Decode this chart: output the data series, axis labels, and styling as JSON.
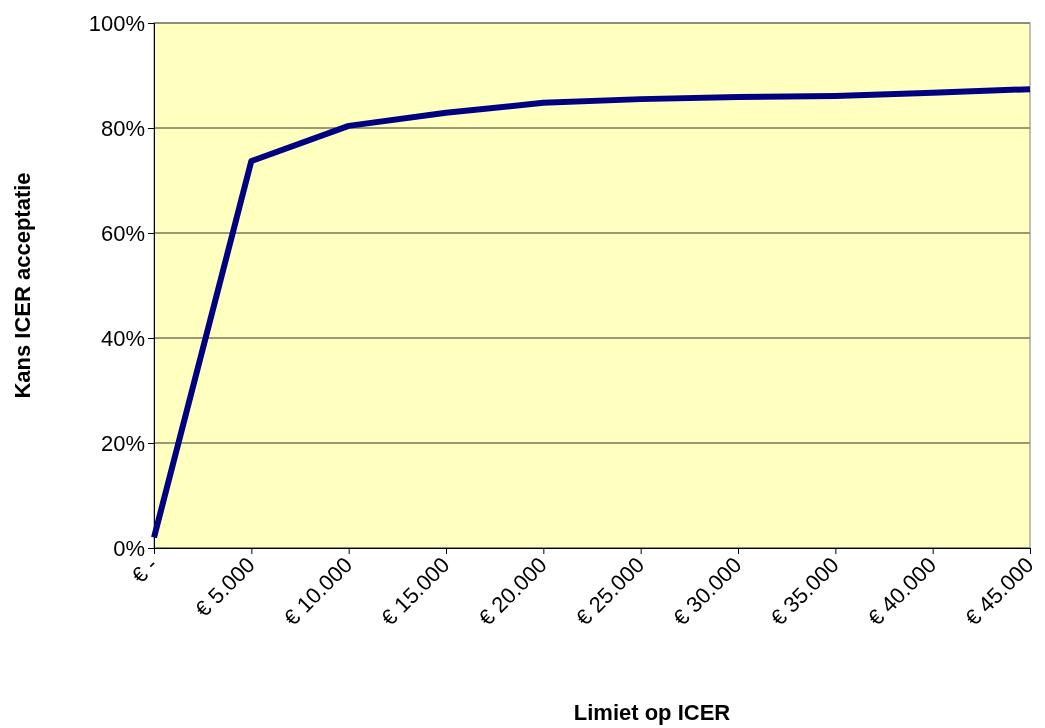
{
  "chart_data": {
    "type": "line",
    "xlabel": "Limiet op ICER",
    "ylabel": "Kans ICER acceptatie",
    "categories": [
      "€ -",
      "€ 5.000",
      "€ 10.000",
      "€ 15.000",
      "€ 20.000",
      "€ 25.000",
      "€ 30.000",
      "€ 35.000",
      "€ 40.000",
      "€ 45.000"
    ],
    "series": [
      {
        "color": "#000080",
        "values": [
          2,
          73.7,
          80.4,
          82.9,
          84.8,
          85.5,
          85.9,
          86.1,
          86.7,
          87.4
        ]
      }
    ],
    "ylim": [
      0,
      100
    ],
    "yticks": [
      {
        "value": 0,
        "label": "0%"
      },
      {
        "value": 20,
        "label": "20%"
      },
      {
        "value": 40,
        "label": "40%"
      },
      {
        "value": 60,
        "label": "60%"
      },
      {
        "value": 80,
        "label": "80%"
      },
      {
        "value": 100,
        "label": "100%"
      }
    ],
    "grid": "y",
    "marker": "none",
    "line_style": "solid"
  }
}
